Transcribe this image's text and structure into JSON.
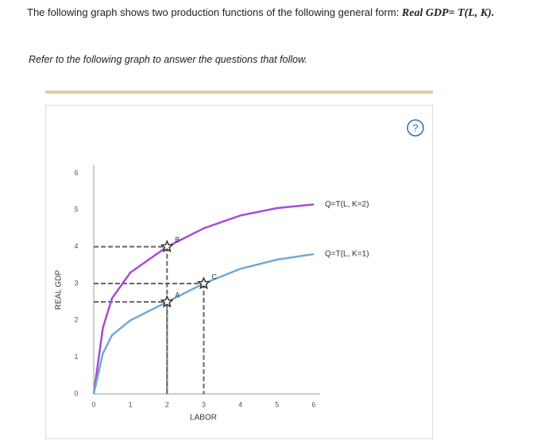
{
  "header": {
    "intro": "The following graph shows two production functions of the following general form:",
    "formula": "Real GDP= T(L, K)."
  },
  "instruction": "Refer to the following graph to answer the questions that follow.",
  "help": "?",
  "chart_data": {
    "type": "line",
    "x_label": "LABOR",
    "y_label": "REAL GDP",
    "x": [
      0,
      0.25,
      0.5,
      1,
      2,
      3,
      4,
      5,
      6
    ],
    "series": [
      {
        "name": "Q=T(L, K=2)",
        "color": "#a64bd6",
        "values": [
          0,
          1.8,
          2.6,
          3.3,
          4,
          4.5,
          4.85,
          5.05,
          5.15
        ]
      },
      {
        "name": "Q=T(L, K=1)",
        "color": "#72a9d8",
        "values": [
          0,
          1.1,
          1.6,
          2,
          2.5,
          3,
          3.4,
          3.65,
          3.8
        ]
      }
    ],
    "points": [
      {
        "label": "A",
        "x": 2,
        "y": 2.5
      },
      {
        "label": "B",
        "x": 2,
        "y": 4
      },
      {
        "label": "C",
        "x": 3,
        "y": 3
      }
    ],
    "xlim": [
      0,
      6
    ],
    "ylim": [
      0,
      6
    ],
    "xticks": [
      0,
      1,
      2,
      3,
      4,
      5,
      6
    ],
    "yticks": [
      0,
      1,
      2,
      3,
      4,
      5,
      6
    ],
    "grid": false
  }
}
